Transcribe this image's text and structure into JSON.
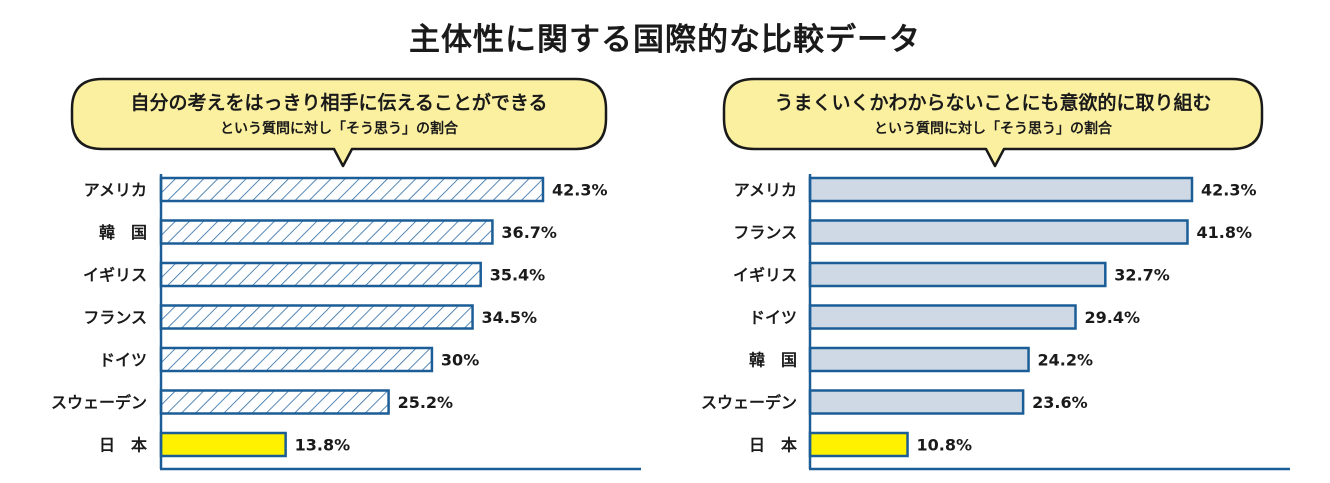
{
  "title": "主体性に関する国際的な比較データ",
  "colors": {
    "outline": "#1b5d96",
    "hatch": "#2a6aa4",
    "fill_light": "#cfd9e6",
    "highlight": "#fff100",
    "bubble": "#fbf0a0",
    "text": "#1a1a1a"
  },
  "chart_data": [
    {
      "type": "bar",
      "orientation": "horizontal",
      "bar_style": "hatched",
      "bubble_main": "自分の考えをはっきり相手に伝えることができる",
      "bubble_sub": "という質問に対し「そう思う」の割合",
      "categories": [
        "アメリカ",
        "韓　国",
        "イギリス",
        "フランス",
        "ドイツ",
        "スウェーデン",
        "日　本"
      ],
      "values": [
        42.3,
        36.7,
        35.4,
        34.5,
        30.0,
        25.2,
        13.8
      ],
      "value_labels": [
        "42.3%",
        "36.7%",
        "35.4%",
        "34.5%",
        "30%",
        "25.2%",
        "13.8%"
      ],
      "highlight_category": "日　本",
      "unit": "%",
      "xlim": [
        0,
        42.3
      ]
    },
    {
      "type": "bar",
      "orientation": "horizontal",
      "bar_style": "filled",
      "bubble_main": "うまくいくかわからないことにも意欲的に取り組む",
      "bubble_sub": "という質問に対し「そう思う」の割合",
      "categories": [
        "アメリカ",
        "フランス",
        "イギリス",
        "ドイツ",
        "韓　国",
        "スウェーデン",
        "日　本"
      ],
      "values": [
        42.3,
        41.8,
        32.7,
        29.4,
        24.2,
        23.6,
        10.8
      ],
      "value_labels": [
        "42.3%",
        "41.8%",
        "32.7%",
        "29.4%",
        "24.2%",
        "23.6%",
        "10.8%"
      ],
      "highlight_category": "日　本",
      "unit": "%",
      "xlim": [
        0,
        42.3
      ]
    }
  ]
}
